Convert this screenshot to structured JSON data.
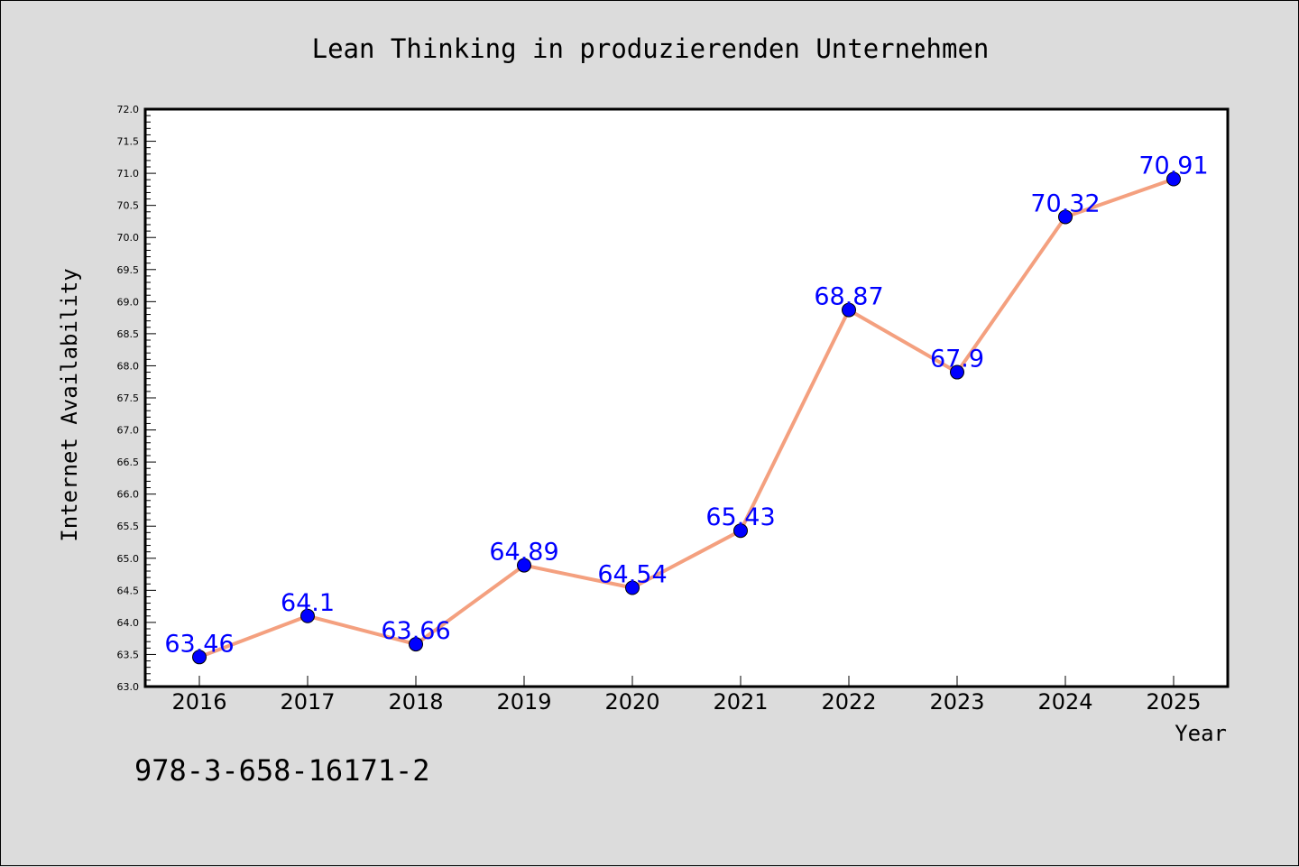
{
  "chart_data": {
    "type": "line",
    "title": "Lean Thinking in produzierenden Unternehmen",
    "xlabel": "Year",
    "ylabel": "Internet Availability",
    "categories": [
      "2016",
      "2017",
      "2018",
      "2019",
      "2020",
      "2021",
      "2022",
      "2023",
      "2024",
      "2025"
    ],
    "values": [
      63.46,
      64.1,
      63.66,
      64.89,
      64.54,
      65.43,
      68.87,
      67.9,
      70.32,
      70.91
    ],
    "value_labels": [
      "63.46",
      "64.1",
      "63.66",
      "64.89",
      "64.54",
      "65.43",
      "68.87",
      "67.9",
      "70.32",
      "70.91"
    ],
    "ylim": [
      63.0,
      72.0
    ],
    "ytick_step": 0.5,
    "ytick_labels": [
      "63.0",
      "63.5",
      "64.0",
      "64.5",
      "65.0",
      "65.5",
      "66.0",
      "66.5",
      "67.0",
      "67.5",
      "68.0",
      "68.5",
      "69.0",
      "69.5",
      "70.0",
      "70.5",
      "71.0",
      "71.5",
      "72.0"
    ],
    "grid": false,
    "legend": "none",
    "line_color": "#f4a07f",
    "marker_color": "#0000ff",
    "label_color": "#0000ff",
    "plot_background": "#ffffff",
    "figure_background": "#dcdcdc"
  },
  "footer": {
    "isbn": "978-3-658-16171-2"
  }
}
